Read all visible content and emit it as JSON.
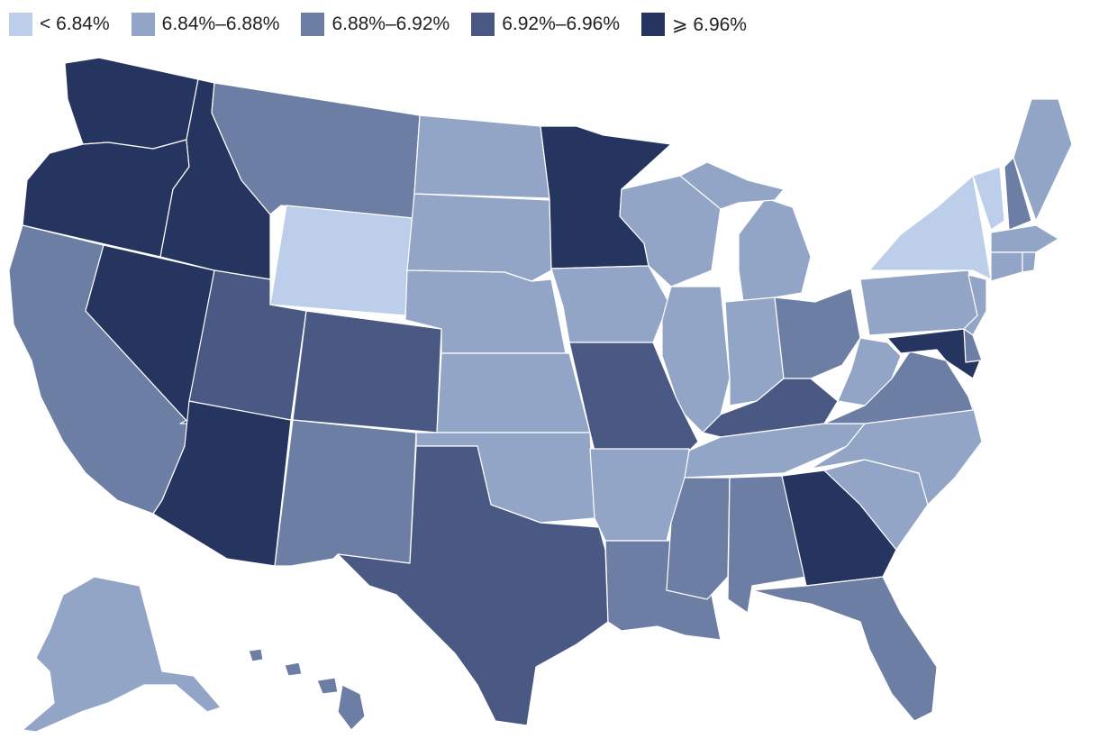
{
  "legend": {
    "bins": [
      {
        "label": "< 6.84%",
        "color": "#bccee9"
      },
      {
        "label": "6.84%–6.88%",
        "color": "#92a5c6"
      },
      {
        "label": "6.88%–6.92%",
        "color": "#6d7ea4"
      },
      {
        "label": "6.92%–6.96%",
        "color": "#4a5884"
      },
      {
        "label": "⩾ 6.96%",
        "color": "#263560"
      }
    ]
  },
  "map": {
    "region": "United States",
    "state_bins": {
      "WA": 4,
      "OR": 4,
      "ID": 4,
      "NV": 4,
      "AZ": 4,
      "MN": 4,
      "GA": 4,
      "MD": 4,
      "UT": 3,
      "CO": 3,
      "TX": 3,
      "MO": 3,
      "KY": 3,
      "CA": 2,
      "MT": 2,
      "NM": 2,
      "LA": 2,
      "MS": 2,
      "AL": 2,
      "FL": 2,
      "OH": 2,
      "VA": 2,
      "NH": 2,
      "DE": 2,
      "HI": 2,
      "WY": 0,
      "NY": 0,
      "VT": 0,
      "ND": 1,
      "SD": 1,
      "NE": 1,
      "KS": 1,
      "OK": 1,
      "IA": 1,
      "WI": 1,
      "MI": 1,
      "IL": 1,
      "IN": 1,
      "AR": 1,
      "TN": 1,
      "NC": 1,
      "SC": 1,
      "WV": 1,
      "PA": 1,
      "NJ": 1,
      "CT": 1,
      "RI": 1,
      "MA": 1,
      "ME": 1,
      "AK": 1
    }
  }
}
